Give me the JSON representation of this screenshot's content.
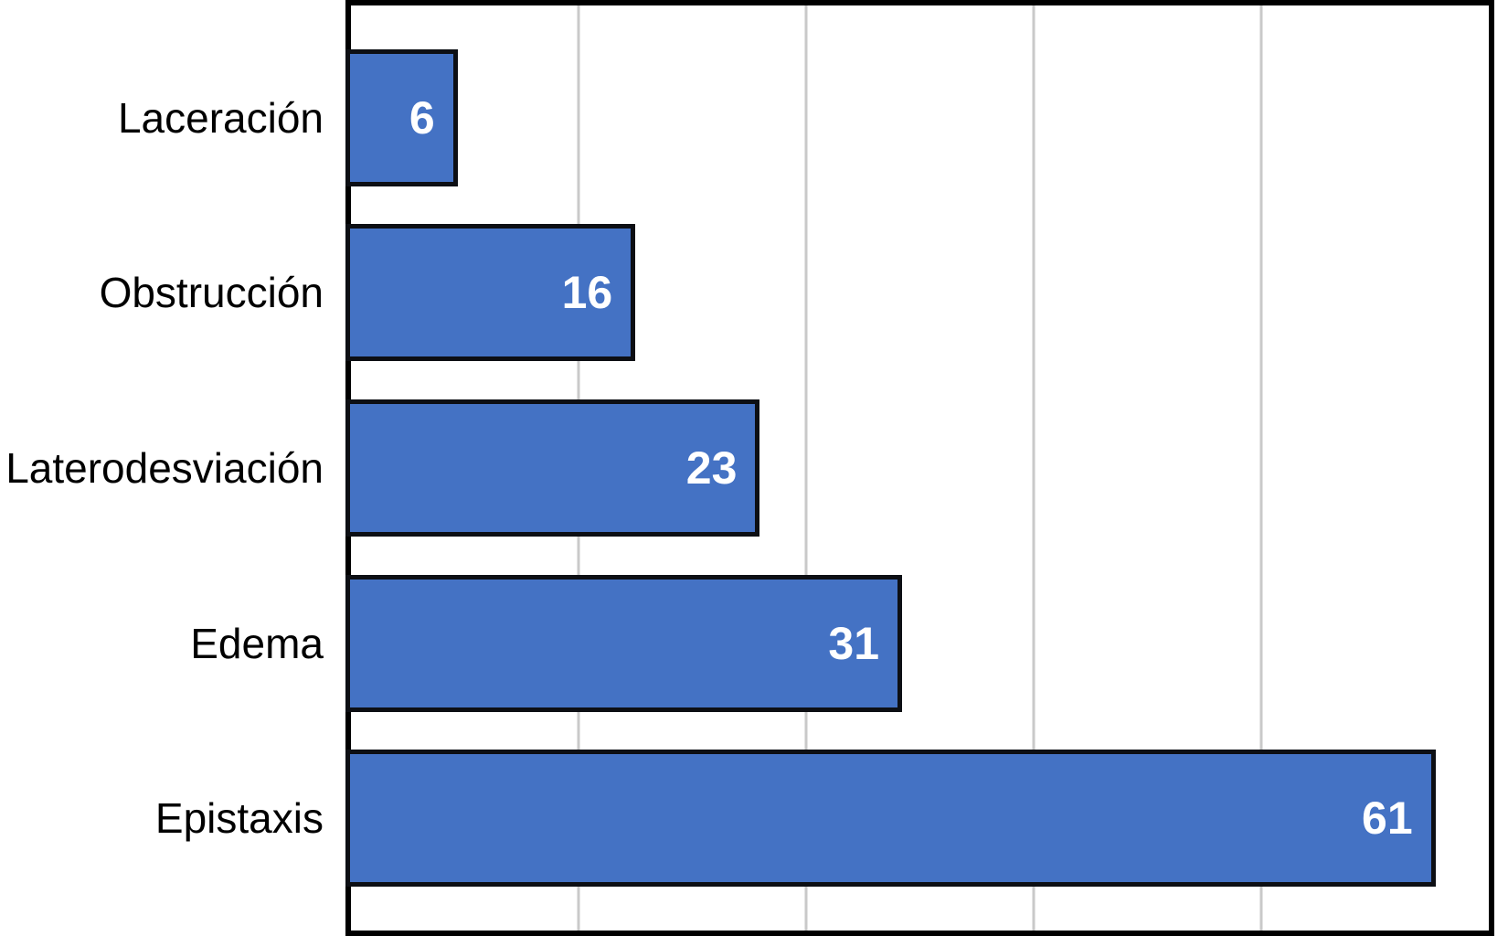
{
  "chart_data": {
    "type": "bar",
    "orientation": "horizontal",
    "title": "",
    "xlabel": "",
    "ylabel": "",
    "categories": [
      "Laceración",
      "Obstrucción",
      "Laterodesviación",
      "Edema",
      "Epistaxis"
    ],
    "values": [
      6,
      16,
      23,
      31,
      61
    ],
    "xlim": [
      0,
      64
    ],
    "gridline_count": 4,
    "grid_on": true,
    "legend_position": "none",
    "bar_color": "#4472C4",
    "bar_border_color": "#0d0f14",
    "gridline_color": "#c9c9c9",
    "plot_border_color": "#000000",
    "value_label_color": "#ffffff",
    "category_label_color": "#000000"
  }
}
